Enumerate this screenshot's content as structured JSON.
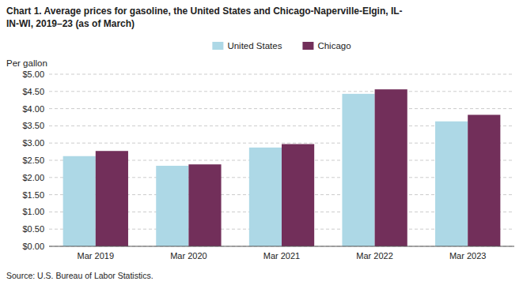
{
  "chart_data": {
    "type": "bar",
    "title": "Chart 1. Average prices for gasoline, the United States and Chicago-Naperville-Elgin, IL-\nIN-WI, 2019–23 (as of March)",
    "ylabel": "Per gallon",
    "annotations": [
      "Source: U.S. Bureau of Labor Statistics."
    ],
    "categories": [
      "Mar 2019",
      "Mar 2020",
      "Mar 2021",
      "Mar 2022",
      "Mar 2023"
    ],
    "series": [
      {
        "name": "United States",
        "color": "#ADD8E6",
        "values": [
          2.62,
          2.34,
          2.87,
          4.43,
          3.63
        ]
      },
      {
        "name": "Chicago",
        "color": "#722F5A",
        "values": [
          2.77,
          2.38,
          2.97,
          4.56,
          3.82
        ]
      }
    ],
    "ylim": [
      0,
      5.0
    ],
    "yticks": [
      {
        "value": 0.0,
        "label": "$0.00"
      },
      {
        "value": 0.5,
        "label": "$0.50"
      },
      {
        "value": 1.0,
        "label": "$1.00"
      },
      {
        "value": 1.5,
        "label": "$1.50"
      },
      {
        "value": 2.0,
        "label": "$2.00"
      },
      {
        "value": 2.5,
        "label": "$2.50"
      },
      {
        "value": 3.0,
        "label": "$3.00"
      },
      {
        "value": 3.5,
        "label": "$3.50"
      },
      {
        "value": 4.0,
        "label": "$4.00"
      },
      {
        "value": 4.5,
        "label": "$4.50"
      },
      {
        "value": 5.0,
        "label": "$5.00"
      }
    ],
    "grid": true,
    "legend": "top"
  }
}
